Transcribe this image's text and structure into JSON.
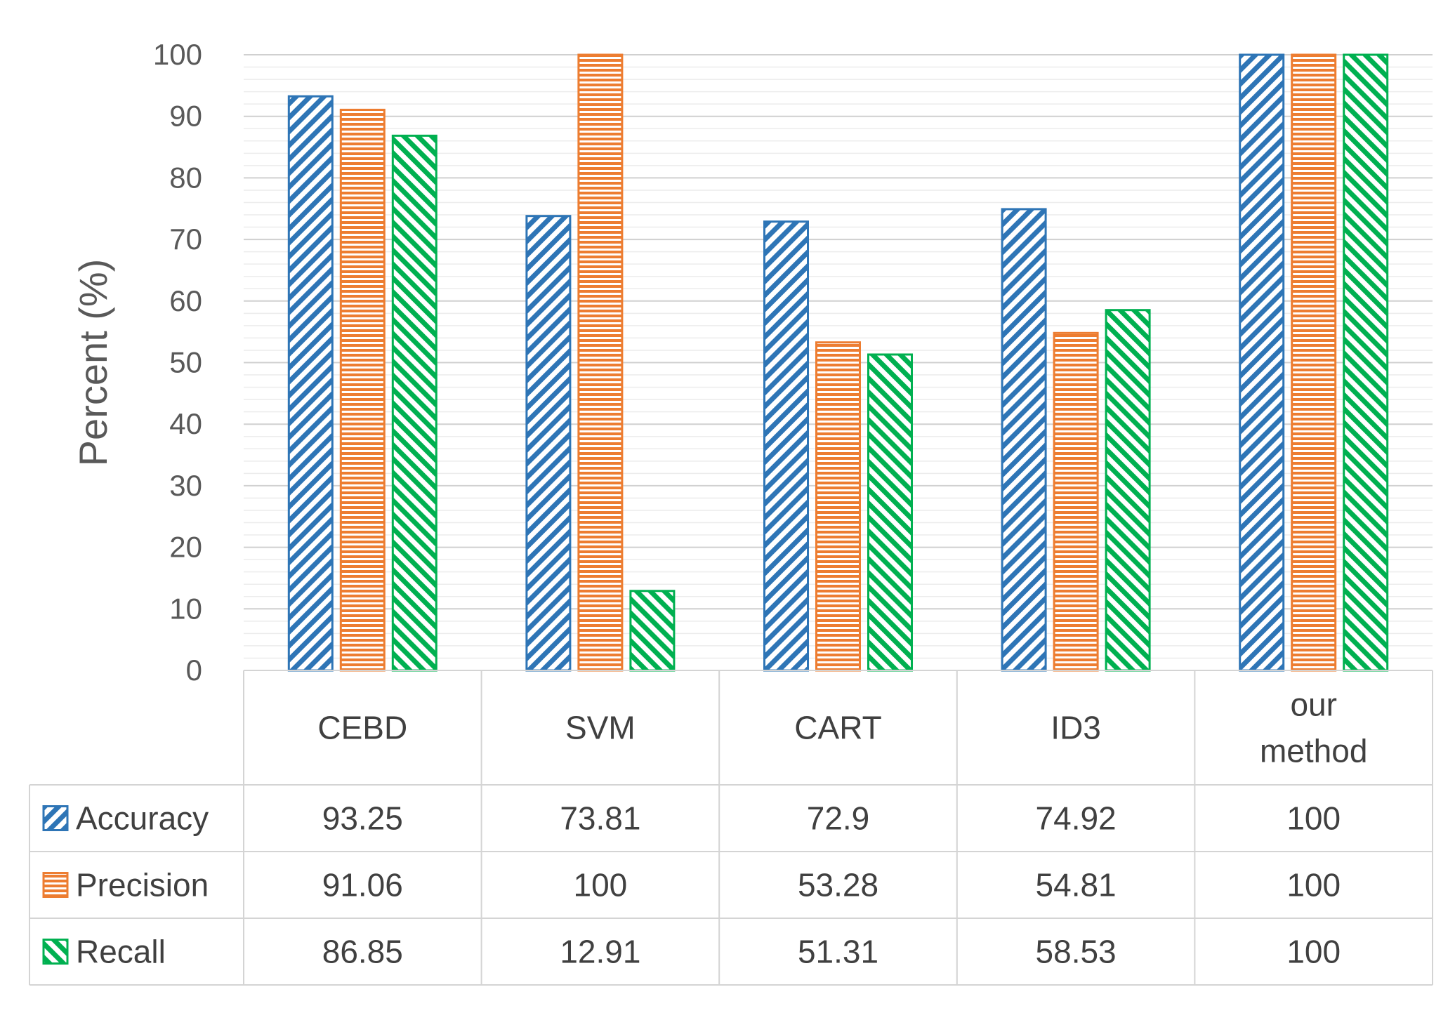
{
  "chart_data": {
    "type": "bar",
    "title": "",
    "xlabel": "",
    "ylabel": "Percent (%)",
    "ylim": [
      0,
      100
    ],
    "yticks": [
      0,
      10,
      20,
      30,
      40,
      50,
      60,
      70,
      80,
      90,
      100
    ],
    "grid": true,
    "legend": "data-table",
    "categories": [
      {
        "lines": [
          "CEBD"
        ]
      },
      {
        "lines": [
          "SVM"
        ]
      },
      {
        "lines": [
          "CART"
        ]
      },
      {
        "lines": [
          "ID3"
        ]
      },
      {
        "lines": [
          "our",
          "method"
        ]
      }
    ],
    "series": [
      {
        "name": "Accuracy",
        "color": "#2E75B6",
        "pattern": "diagonal-down",
        "values": [
          93.25,
          73.81,
          72.9,
          74.92,
          100
        ],
        "labels": [
          "93.25",
          "73.81",
          "72.9",
          "74.92",
          "100"
        ]
      },
      {
        "name": "Precision",
        "color": "#ED7D31",
        "pattern": "horizontal",
        "values": [
          91.06,
          100,
          53.28,
          54.81,
          100
        ],
        "labels": [
          "91.06",
          "100",
          "53.28",
          "54.81",
          "100"
        ]
      },
      {
        "name": "Recall",
        "color": "#00B050",
        "pattern": "diagonal-up",
        "values": [
          86.85,
          12.91,
          51.31,
          58.53,
          100
        ],
        "labels": [
          "86.85",
          "12.91",
          "51.31",
          "58.53",
          "100"
        ]
      }
    ]
  }
}
